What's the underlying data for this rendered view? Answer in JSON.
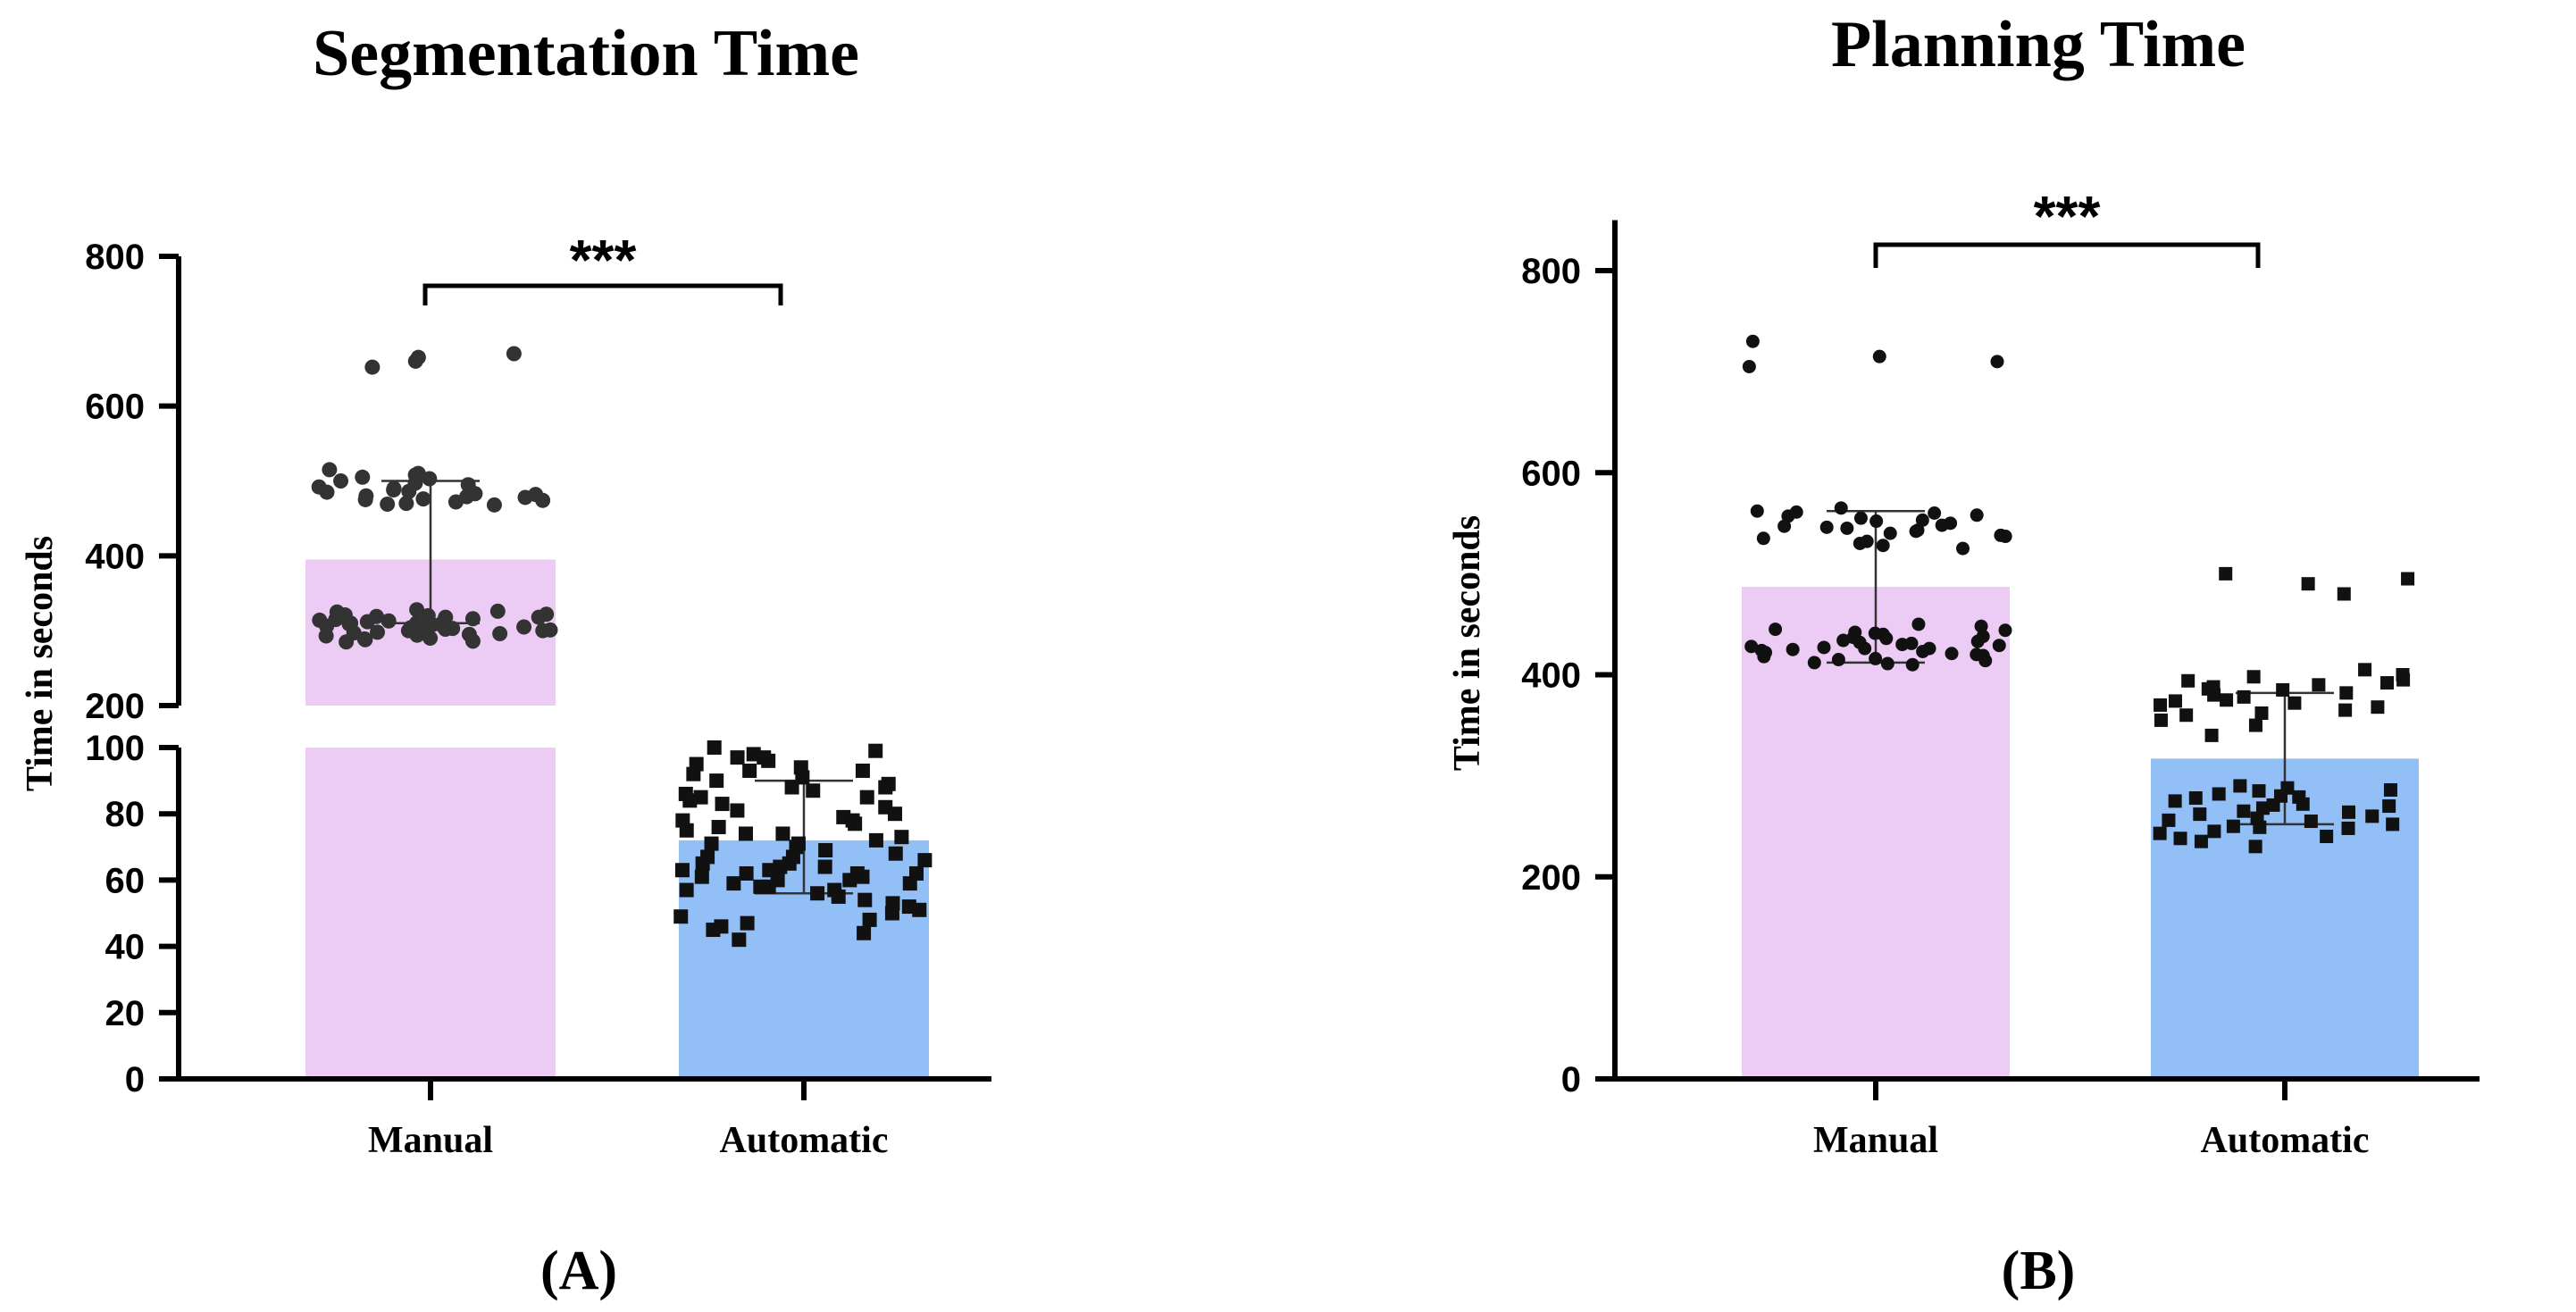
{
  "chart_data": [
    {
      "type": "bar",
      "panel": "(A)",
      "title": "Segmentation Time",
      "xlabel": "",
      "ylabel": "Time in seconds",
      "categories": [
        "Manual",
        "Automatic"
      ],
      "axis_break": {
        "lower": [
          0,
          100
        ],
        "upper": [
          200,
          800
        ]
      },
      "ylim": [
        0,
        800
      ],
      "yticks_lower": [
        0,
        20,
        40,
        60,
        80,
        100
      ],
      "yticks_upper": [
        200,
        400,
        600,
        800
      ],
      "ytick_labels_lower": [
        "0",
        "20",
        "40",
        "60",
        "80",
        "100"
      ],
      "ytick_labels_upper": [
        "200",
        "400",
        "600",
        "800"
      ],
      "series": [
        {
          "name": "Manual",
          "mean": 395,
          "sd_low": 310,
          "sd_high": 500,
          "color": "#ecccf5",
          "points": [
            320,
            318,
            315,
            312,
            310,
            308,
            306,
            305,
            303,
            300,
            298,
            296,
            295,
            293,
            290,
            288,
            286,
            285,
            302,
            306,
            310,
            314,
            318,
            322,
            325,
            328,
            300,
            297,
            304,
            311,
            316,
            319,
            309,
            301,
            294,
            289,
            307,
            313,
            321,
            326,
            490,
            488,
            485,
            482,
            480,
            478,
            476,
            475,
            472,
            470,
            468,
            495,
            500,
            505,
            510,
            515,
            492,
            486,
            483,
            479,
            474,
            469,
            497,
            503,
            508,
            670,
            665,
            660,
            652
          ]
        },
        {
          "name": "Automatic",
          "mean": 72,
          "sd_low": 56,
          "sd_high": 90,
          "color": "#93bff7",
          "points": [
            42,
            44,
            45,
            47,
            48,
            50,
            51,
            52,
            53,
            54,
            55,
            56,
            57,
            58,
            58,
            59,
            60,
            60,
            61,
            62,
            62,
            63,
            63,
            64,
            65,
            65,
            66,
            67,
            68,
            69,
            70,
            71,
            72,
            73,
            74,
            75,
            76,
            77,
            78,
            79,
            80,
            81,
            82,
            83,
            84,
            85,
            86,
            87,
            88,
            89,
            90,
            91,
            92,
            93,
            94,
            95,
            96,
            97,
            98,
            99,
            100,
            46,
            49,
            57,
            61,
            64,
            67,
            71,
            74,
            78,
            85,
            88,
            93,
            97,
            59,
            62
          ]
        }
      ],
      "significance": "***"
    },
    {
      "type": "bar",
      "panel": "(B)",
      "title": "Planning Time",
      "xlabel": "",
      "ylabel": "Time in seconds",
      "categories": [
        "Manual",
        "Automatic"
      ],
      "ylim": [
        0,
        850
      ],
      "yticks": [
        0,
        200,
        400,
        600,
        800
      ],
      "ytick_labels": [
        "0",
        "200",
        "400",
        "600",
        "800"
      ],
      "series": [
        {
          "name": "Manual",
          "mean": 487,
          "sd_low": 412,
          "sd_high": 562,
          "color": "#ecccf5",
          "points": [
            410,
            412,
            415,
            418,
            420,
            422,
            424,
            425,
            427,
            428,
            430,
            432,
            434,
            436,
            438,
            440,
            442,
            445,
            448,
            450,
            416,
            419,
            423,
            426,
            429,
            433,
            437,
            441,
            426,
            421,
            414,
            411,
            444,
            431,
            525,
            530,
            535,
            538,
            540,
            542,
            545,
            548,
            550,
            552,
            555,
            558,
            560,
            562,
            565,
            532,
            537,
            543,
            547,
            553,
            557,
            561,
            528,
            546,
            705,
            710,
            715,
            730
          ]
        },
        {
          "name": "Automatic",
          "mean": 317,
          "sd_low": 252,
          "sd_high": 382,
          "color": "#93bff7",
          "points": [
            230,
            235,
            240,
            245,
            248,
            250,
            252,
            255,
            258,
            260,
            262,
            265,
            268,
            270,
            272,
            275,
            278,
            280,
            282,
            285,
            288,
            290,
            243,
            256,
            264,
            271,
            279,
            286,
            238,
            249,
            340,
            350,
            355,
            360,
            365,
            368,
            370,
            372,
            375,
            378,
            380,
            382,
            385,
            388,
            390,
            392,
            395,
            398,
            400,
            405,
            362,
            374,
            386,
            394,
            480,
            490,
            495,
            500
          ]
        }
      ],
      "significance": "***"
    }
  ]
}
